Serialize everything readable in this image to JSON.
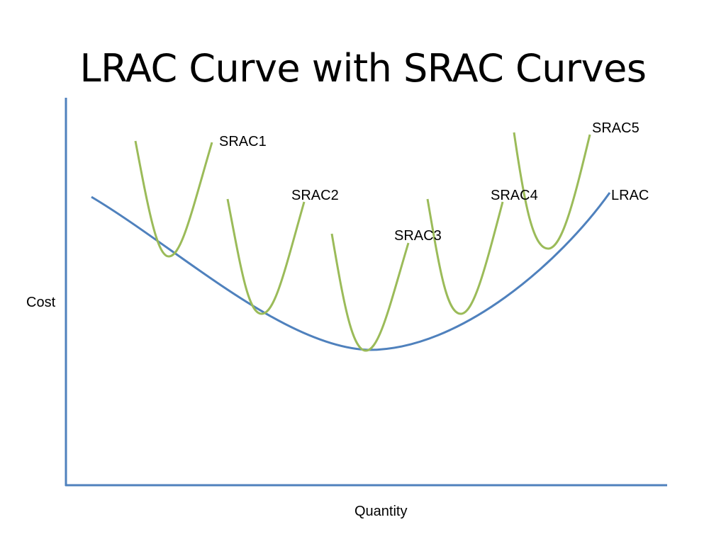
{
  "title": "LRAC Curve with SRAC Curves",
  "axes": {
    "y_label": "Cost",
    "x_label": "Quantity"
  },
  "curves": {
    "lrac": {
      "label": "LRAC",
      "color": "#4f81bd"
    },
    "srac": [
      {
        "label": "SRAC1",
        "color": "#9bbb59"
      },
      {
        "label": "SRAC2",
        "color": "#9bbb59"
      },
      {
        "label": "SRAC3",
        "color": "#9bbb59"
      },
      {
        "label": "SRAC4",
        "color": "#9bbb59"
      },
      {
        "label": "SRAC5",
        "color": "#9bbb59"
      }
    ]
  }
}
